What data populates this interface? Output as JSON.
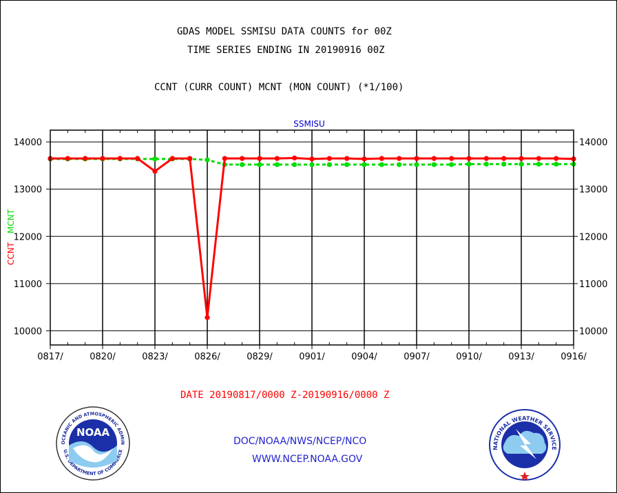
{
  "header": {
    "title_line1": "GDAS MODEL SSMISU DATA COUNTS for 00Z",
    "title_line2": "TIME SERIES ENDING IN 20190916 00Z",
    "title_line3": "CCNT (CURR COUNT) MCNT (MON COUNT) (*1/100)"
  },
  "footer": {
    "date_range": "DATE 20190817/0000 Z-20190916/0000 Z",
    "agency": "DOC/NOAA/NWS/NCEP/NCO",
    "website": "WWW.NCEP.NOAA.GOV"
  },
  "logos": {
    "noaa_text": "NOAA",
    "noaa_ring_top": "NATIONAL OCEANIC AND ATMOSPHERIC ADMINISTRATION",
    "noaa_ring_bottom": "U.S. DEPARTMENT OF COMMERCE",
    "nws_ring": "NATIONAL WEATHER SERVICE"
  },
  "colors": {
    "ccnt": "#ff0000",
    "mcnt": "#00dd00",
    "title_blue": "#0000cc",
    "date_red": "#ff0000"
  },
  "chart_data": {
    "type": "line",
    "title": "SSMISU",
    "ylabel_parts": [
      "CCNT",
      "MCNT"
    ],
    "xlabels": [
      "0817/",
      "0820/",
      "0823/",
      "0826/",
      "0829/",
      "0901/",
      "0904/",
      "0907/",
      "0910/",
      "0913/",
      "0916/"
    ],
    "yticks": [
      10000,
      11000,
      12000,
      13000,
      14000
    ],
    "ylim": [
      9700,
      14250
    ],
    "x": [
      "0817",
      "0818",
      "0819",
      "0820",
      "0821",
      "0822",
      "0823",
      "0824",
      "0825",
      "0826",
      "0827",
      "0828",
      "0829",
      "0830",
      "0831",
      "0901",
      "0902",
      "0903",
      "0904",
      "0905",
      "0906",
      "0907",
      "0908",
      "0909",
      "0910",
      "0911",
      "0912",
      "0913",
      "0914",
      "0915",
      "0916"
    ],
    "grid": true,
    "series": [
      {
        "name": "CCNT",
        "color": "#ff0000",
        "style": "solid",
        "values": [
          13650,
          13650,
          13650,
          13650,
          13650,
          13650,
          13380,
          13650,
          13650,
          10280,
          13650,
          13650,
          13650,
          13650,
          13660,
          13640,
          13650,
          13650,
          13640,
          13650,
          13650,
          13650,
          13650,
          13650,
          13650,
          13650,
          13650,
          13650,
          13650,
          13650,
          13640
        ]
      },
      {
        "name": "MCNT",
        "color": "#00dd00",
        "style": "dotted",
        "values": [
          13640,
          13640,
          13640,
          13640,
          13640,
          13640,
          13640,
          13640,
          13640,
          13620,
          13520,
          13520,
          13520,
          13520,
          13520,
          13520,
          13520,
          13520,
          13520,
          13520,
          13520,
          13520,
          13520,
          13520,
          13530,
          13530,
          13530,
          13530,
          13530,
          13530,
          13530
        ]
      }
    ]
  }
}
